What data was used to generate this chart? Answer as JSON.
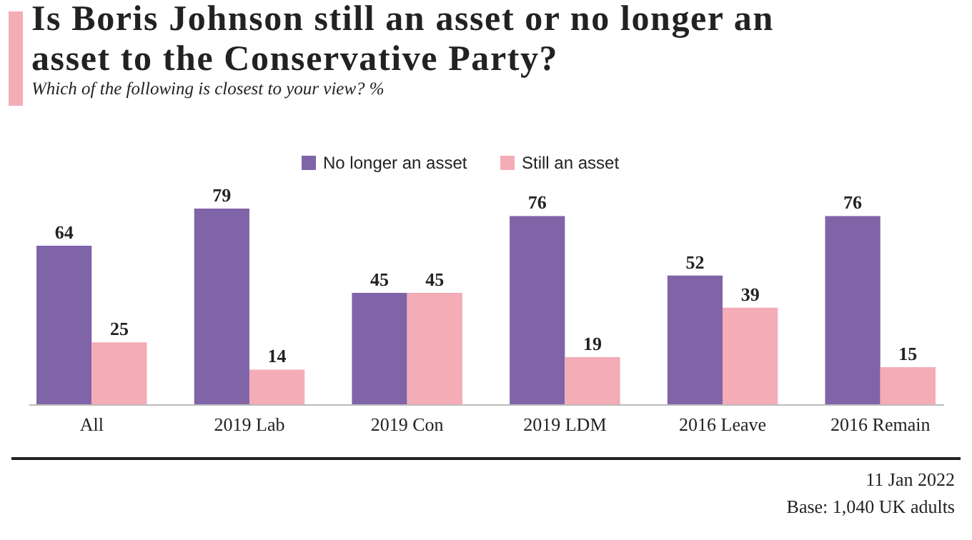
{
  "chart_data": {
    "type": "bar",
    "title": "Is Boris Johnson still an asset or no longer an asset to the Conservative Party?",
    "subtitle": "Which of the following is closest to your view? %",
    "categories": [
      "All",
      "2019 Lab",
      "2019 Con",
      "2019 LDM",
      "2016 Leave",
      "2016 Remain"
    ],
    "series": [
      {
        "name": "No longer an asset",
        "color": "#8064a8",
        "values": [
          64,
          79,
          45,
          76,
          52,
          76
        ]
      },
      {
        "name": "Still an asset",
        "color": "#f4acb7",
        "values": [
          25,
          14,
          45,
          19,
          39,
          15
        ]
      }
    ],
    "data_labels": true,
    "legend": "top",
    "grid": false,
    "annotations": [
      "11 Jan 2022",
      "Base: 1,040 UK adults"
    ]
  }
}
